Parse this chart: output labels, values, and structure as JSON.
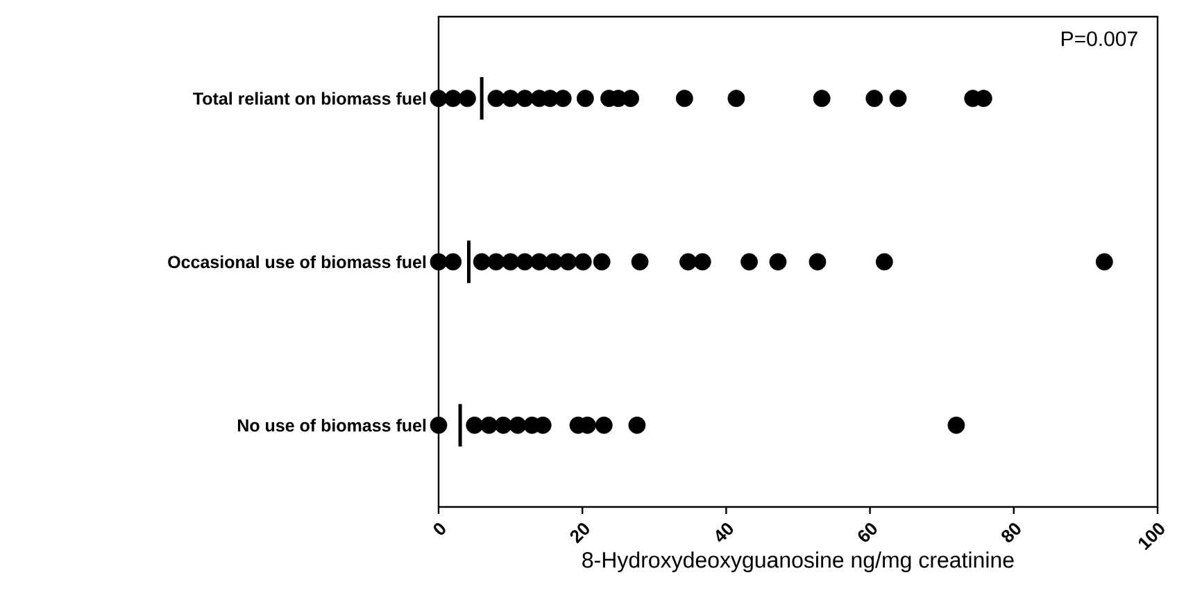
{
  "chart_data": {
    "type": "scatter",
    "orientation": "horizontal",
    "xlabel": "8-Hydroxydeoxyguanosine ng/mg creatinine",
    "categories": [
      "Total reliant on biomass fuel",
      "Occasional use of biomass fuel",
      "No use of biomass fuel"
    ],
    "xlim": [
      0,
      100
    ],
    "xticks": [
      0,
      20,
      40,
      60,
      80,
      100
    ],
    "grid": false,
    "marker": "circle",
    "annotations": [
      "P=0.007"
    ],
    "series": [
      {
        "color": "#000000",
        "x": [
          "Total reliant on biomass fuel",
          "Total reliant on biomass fuel",
          "Total reliant on biomass fuel",
          "Total reliant on biomass fuel",
          "Total reliant on biomass fuel",
          "Total reliant on biomass fuel",
          "Total reliant on biomass fuel",
          "Total reliant on biomass fuel",
          "Total reliant on biomass fuel",
          "Total reliant on biomass fuel",
          "Total reliant on biomass fuel",
          "Total reliant on biomass fuel",
          "Total reliant on biomass fuel",
          "Total reliant on biomass fuel",
          "Total reliant on biomass fuel",
          "Total reliant on biomass fuel",
          "Total reliant on biomass fuel",
          "Total reliant on biomass fuel",
          "Total reliant on biomass fuel",
          "Total reliant on biomass fuel"
        ],
        "values": [
          0,
          2,
          4,
          8,
          10,
          12,
          14,
          15.5,
          17.3,
          20.4,
          23.7,
          25,
          26.7,
          34.2,
          41.4,
          53.3,
          60.6,
          63.9,
          74.3,
          75.8
        ]
      },
      {
        "color": "#000000",
        "x": [
          "Occasional use of biomass fuel",
          "Occasional use of biomass fuel",
          "Occasional use of biomass fuel",
          "Occasional use of biomass fuel",
          "Occasional use of biomass fuel",
          "Occasional use of biomass fuel",
          "Occasional use of biomass fuel",
          "Occasional use of biomass fuel",
          "Occasional use of biomass fuel",
          "Occasional use of biomass fuel",
          "Occasional use of biomass fuel",
          "Occasional use of biomass fuel",
          "Occasional use of biomass fuel",
          "Occasional use of biomass fuel",
          "Occasional use of biomass fuel",
          "Occasional use of biomass fuel",
          "Occasional use of biomass fuel",
          "Occasional use of biomass fuel",
          "Occasional use of biomass fuel"
        ],
        "values": [
          0,
          2,
          6,
          8,
          10,
          12,
          14,
          16,
          18,
          20.1,
          22.7,
          28,
          34.7,
          36.7,
          43.2,
          47.2,
          52.7,
          62,
          92.6
        ]
      },
      {
        "color": "#000000",
        "x": [
          "No use of biomass fuel",
          "No use of biomass fuel",
          "No use of biomass fuel",
          "No use of biomass fuel",
          "No use of biomass fuel",
          "No use of biomass fuel",
          "No use of biomass fuel",
          "No use of biomass fuel",
          "No use of biomass fuel",
          "No use of biomass fuel",
          "No use of biomass fuel",
          "No use of biomass fuel"
        ],
        "values": [
          0,
          5,
          7,
          9,
          11,
          13,
          14.5,
          19.4,
          20.7,
          23,
          27.6,
          72
        ]
      },
      {
        "type": "box",
        "color": "#000000",
        "boxes": [
          {
            "low": 6,
            "q1": 6,
            "median": 6,
            "q3": 6,
            "high": 6
          },
          {
            "low": 4.2,
            "q1": 4.2,
            "median": 4.2,
            "q3": 4.2,
            "high": 4.2
          },
          {
            "low": 3,
            "q1": 3,
            "median": 3,
            "q3": 3,
            "high": 3
          }
        ]
      }
    ]
  }
}
